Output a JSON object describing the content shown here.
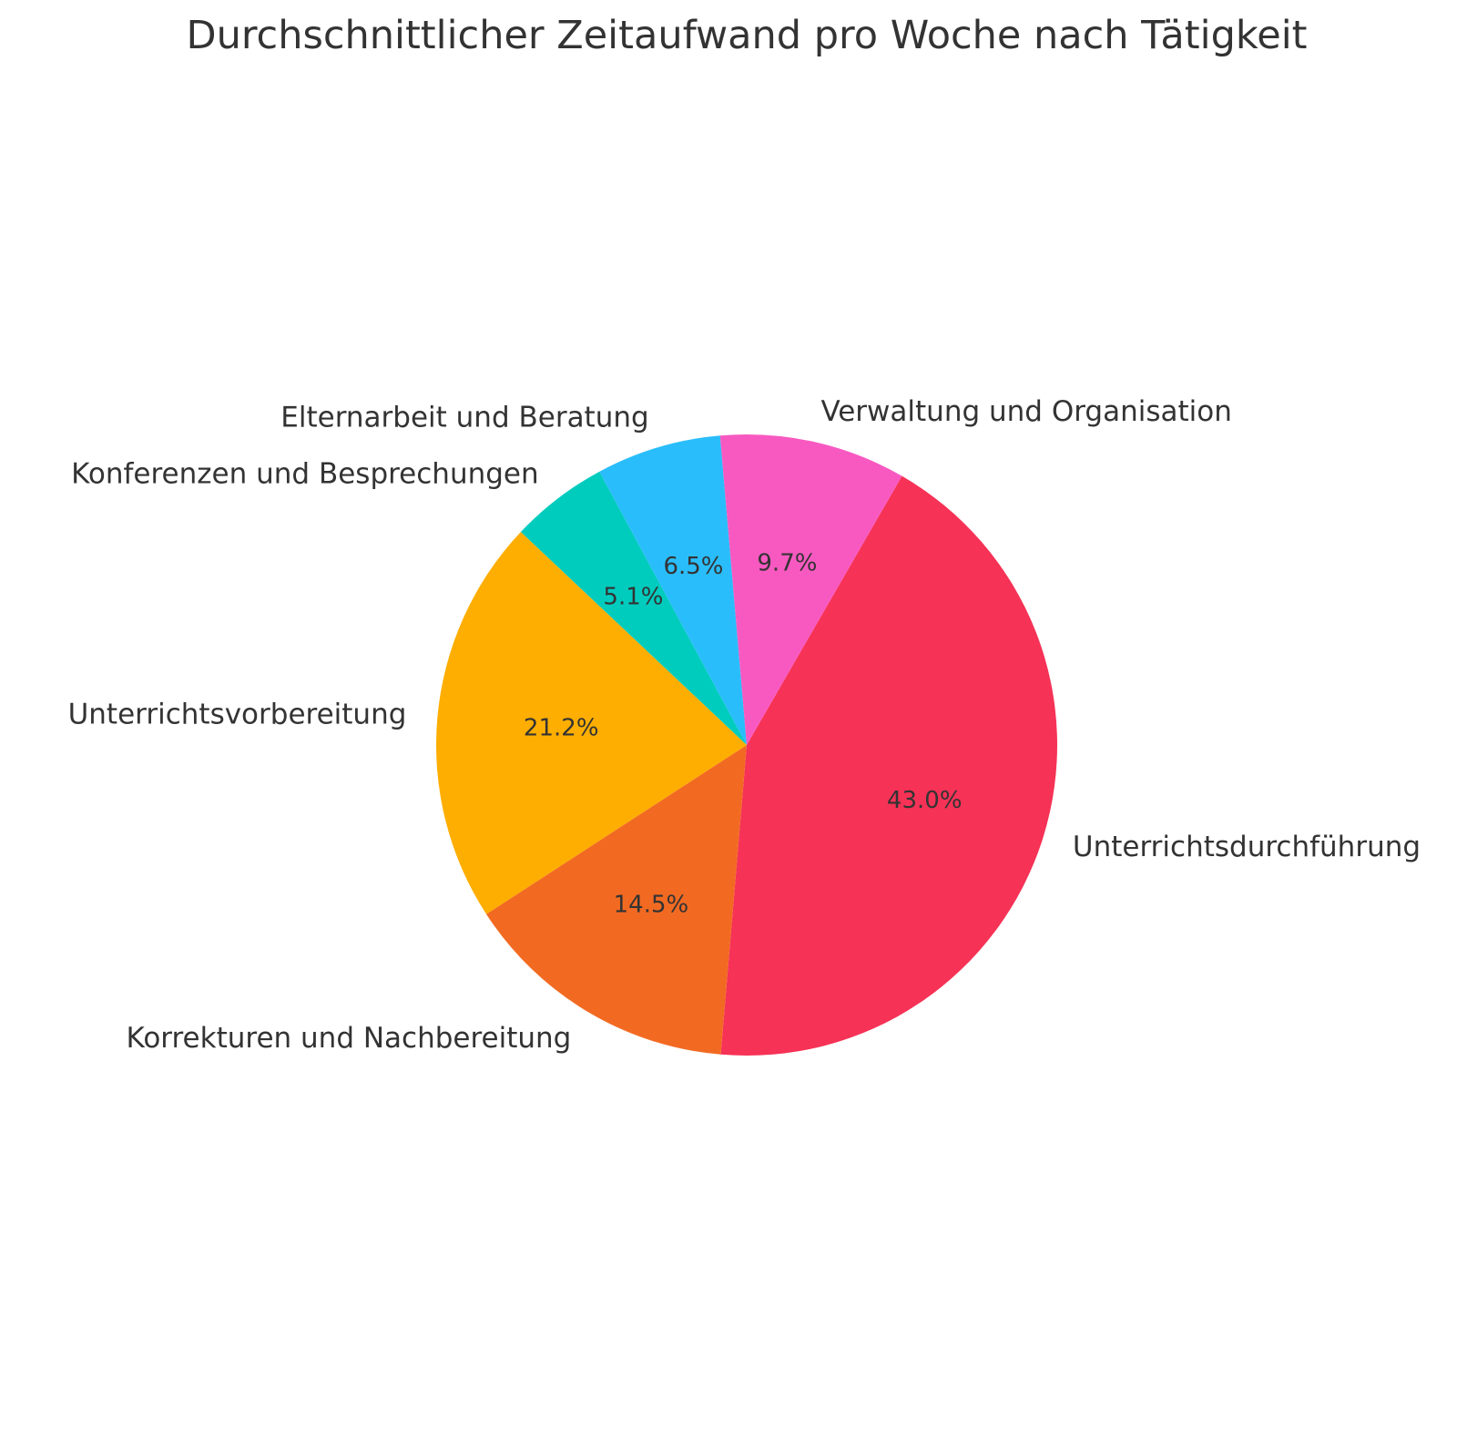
{
  "chart_data": {
    "type": "pie",
    "title": "Durchschnittlicher Zeitaufwand pro Woche nach Tätigkeit",
    "categories": [
      "Unterrichtsdurchführung",
      "Korrekturen und Nachbereitung",
      "Unterrichtsvorbereitung",
      "Konferenzen und Besprechungen",
      "Elternarbeit und Beratung",
      "Verwaltung und Organisation"
    ],
    "values": [
      43.0,
      14.5,
      21.2,
      5.1,
      6.5,
      9.7
    ],
    "value_labels": [
      "43.0%",
      "14.5%",
      "21.2%",
      "5.1%",
      "6.5%",
      "9.7%"
    ],
    "colors": [
      "#F63256",
      "#F26A22",
      "#FEAE00",
      "#00CCBE",
      "#2ABDFB",
      "#F859C1"
    ],
    "start_angle_deg": 60,
    "direction": "clockwise"
  }
}
